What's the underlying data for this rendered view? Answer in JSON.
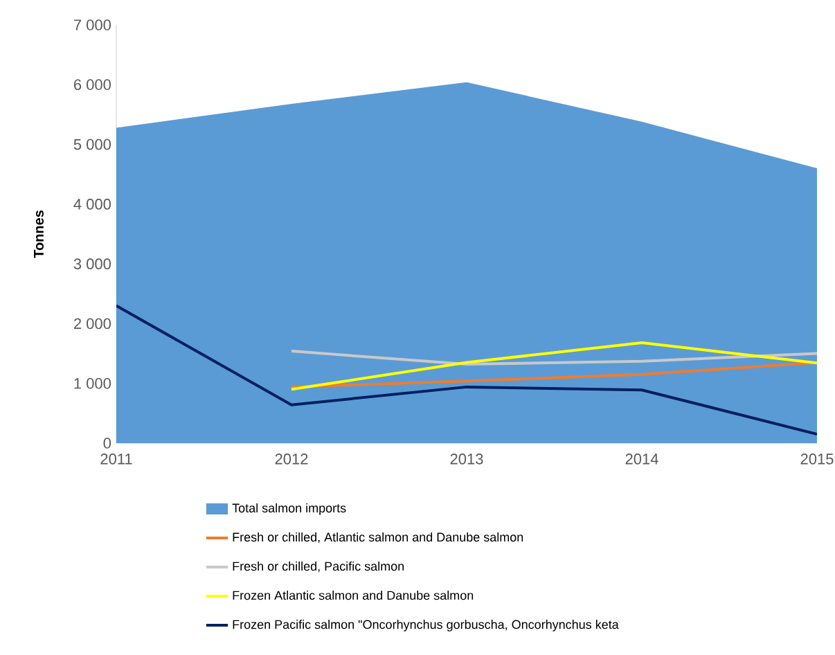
{
  "chart_data": {
    "type": "line",
    "ylabel": "Tonnes",
    "x": [
      2011,
      2012,
      2013,
      2014,
      2015
    ],
    "xlim": [
      2011,
      2015
    ],
    "xticks": [
      2011,
      2012,
      2013,
      2014,
      2015
    ],
    "ylim": [
      0,
      7000
    ],
    "yticks": [
      {
        "value": 0,
        "label": "0"
      },
      {
        "value": 1000,
        "label": "1 000"
      },
      {
        "value": 2000,
        "label": "2 000"
      },
      {
        "value": 3000,
        "label": "3 000"
      },
      {
        "value": 4000,
        "label": "4 000"
      },
      {
        "value": 5000,
        "label": "5 000"
      },
      {
        "value": 6000,
        "label": "6 000"
      },
      {
        "value": 7000,
        "label": "7 000"
      }
    ],
    "legend": "bottom",
    "series": [
      {
        "name": "Total salmon imports",
        "type": "area",
        "color": "#5b9bd5",
        "values": [
          5280,
          5680,
          6040,
          5380,
          4600
        ]
      },
      {
        "name": "Fresh or chilled, Atlantic salmon and Danube salmon",
        "color": "#ed7d31",
        "values": [
          null,
          940,
          1040,
          1150,
          1350
        ]
      },
      {
        "name": "Fresh or chilled, Pacific salmon",
        "color": "#c9c9c9",
        "values": [
          null,
          1540,
          1320,
          1370,
          1500
        ]
      },
      {
        "name": "Frozen Atlantic salmon and Danube salmon",
        "color": "#ffff00",
        "values": [
          null,
          900,
          1350,
          1680,
          1340
        ]
      },
      {
        "name": "Frozen Pacific salmon \"Oncorhynchus gorbuscha, Oncorhynchus keta",
        "color": "#002060",
        "values": [
          2300,
          640,
          940,
          890,
          150
        ]
      }
    ]
  }
}
